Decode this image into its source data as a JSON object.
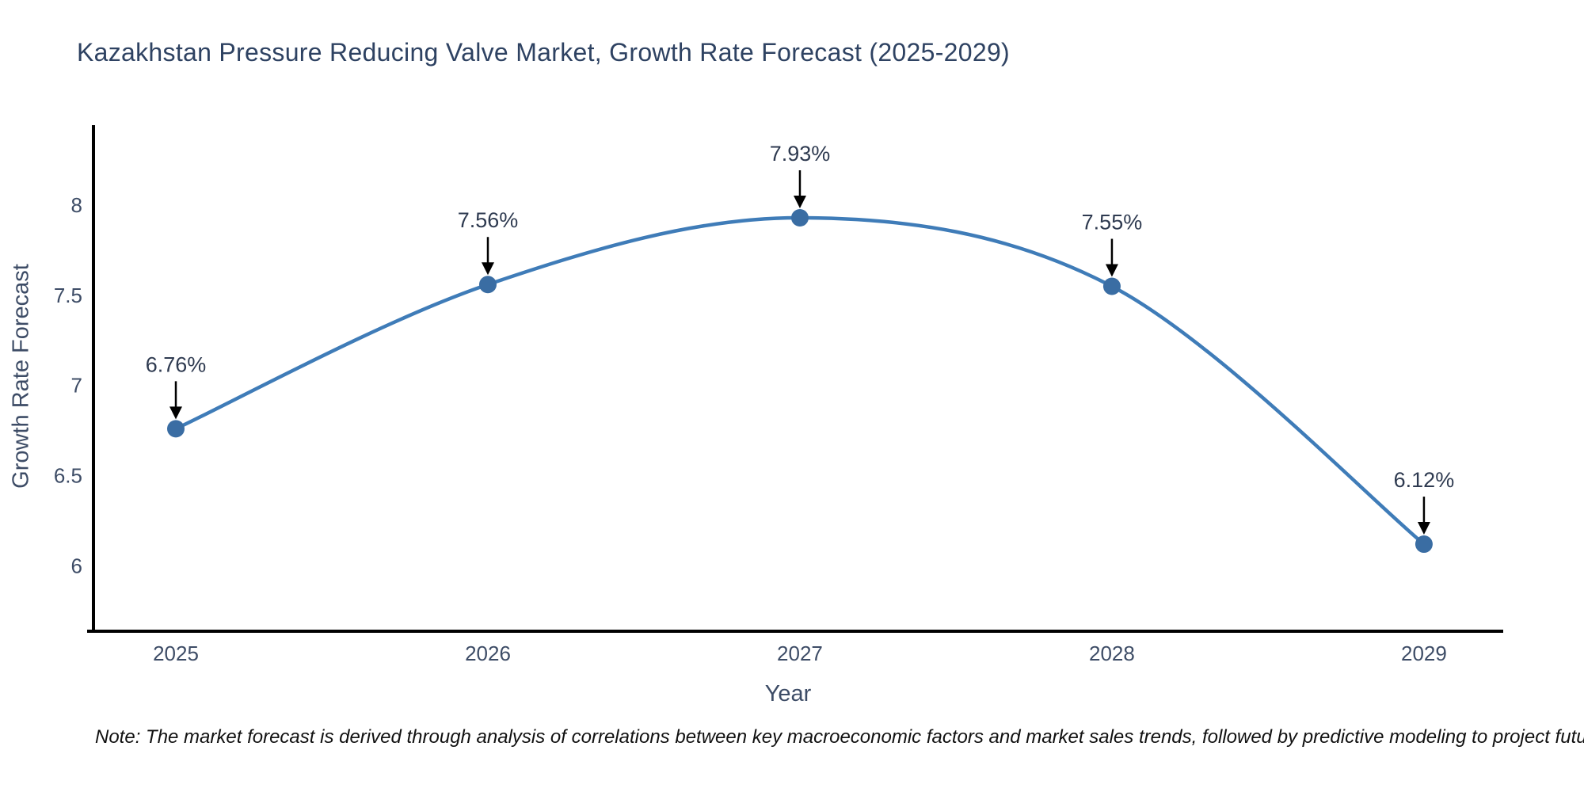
{
  "title": {
    "text": "Kazakhstan Pressure Reducing Valve Market, Growth Rate Forecast (2025-2029)",
    "color": "#2e4262"
  },
  "chart_data": {
    "type": "line",
    "x": [
      2025,
      2026,
      2027,
      2028,
      2029
    ],
    "values": [
      6.76,
      7.56,
      7.93,
      7.55,
      6.12
    ],
    "point_labels": [
      "6.76%",
      "7.56%",
      "7.93%",
      "7.55%",
      "6.12%"
    ],
    "series_name": "Growth Rate Forecast",
    "title": "Kazakhstan Pressure Reducing Valve Market, Growth Rate Forecast (2025-2029)",
    "xlabel": "Year",
    "ylabel": "Growth Rate Forecast",
    "xtick_labels": [
      "2025",
      "2026",
      "2027",
      "2028",
      "2029"
    ],
    "yticks": [
      6,
      6.5,
      7,
      7.5,
      8
    ],
    "ytick_labels": [
      "6",
      "6.5",
      "7",
      "7.5",
      "8"
    ],
    "xlim": [
      2024.736,
      2029.254
    ],
    "ylim": [
      5.637,
      8.444
    ],
    "grid": false,
    "legend_position": "none",
    "smooth_line": true,
    "annotations_have_arrows": true,
    "colors": {
      "line": "#3f7cb8",
      "marker": "#3a6da3",
      "axis": "#000000",
      "arrow": "#000000",
      "tick_text": "#3d4c66",
      "annotation_text": "#2e3a50"
    }
  },
  "footnote": {
    "text": "Note: The market forecast is derived through analysis of correlations between key macroeconomic factors and market sales trends, followed by predictive modeling to project future sales"
  }
}
